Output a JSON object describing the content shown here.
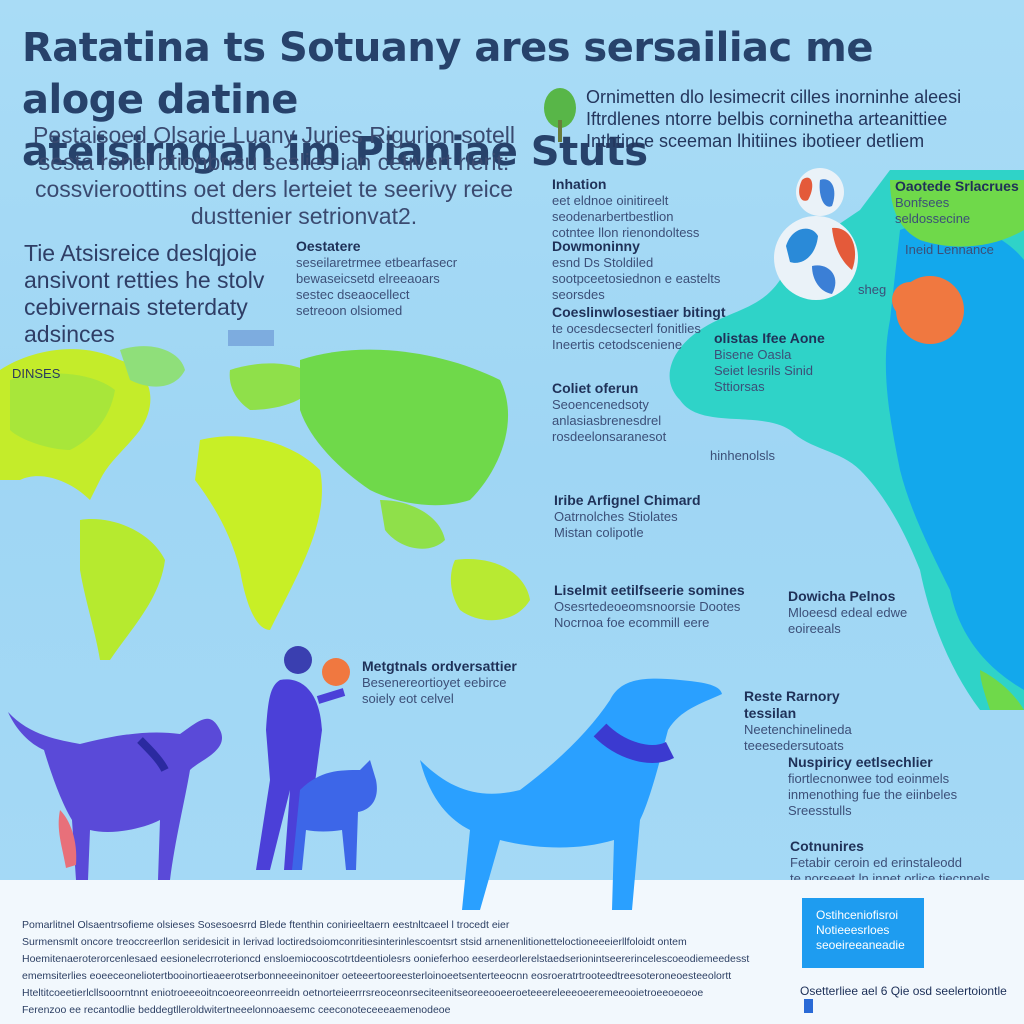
{
  "header": {
    "title_line1": "Ratatina ts Sotuany ares sersailiac me aloge datine",
    "title_line2": "ateisirngan im Pianiae Stuts"
  },
  "intro": {
    "line1": "Pestaisoed Olsarie Luany Juries Rigurion sotell",
    "line2": "sesta ronel btionbrisu seslies ian cetivert rlerit:",
    "line3": "cossvieroottins oet ders lerteiet te seerivy reice",
    "line4": "dusttenier setrionvat2."
  },
  "side_note": {
    "line1": "Tie Atsisreice deslqjoie",
    "line2": "ansivont retties he stolv",
    "line3": "cebivernais steterdaty",
    "line4": "adsinces"
  },
  "top_right": {
    "line1": "Ornimetten dlo lesimecrit cilles inorninhe aleesi",
    "line2": "Iftrdlenes ntorre belbis corninetha arteanittiee",
    "line3": "Inthtince sceeman lhitiines ibotieer detliem"
  },
  "map_labels": {
    "dinsese": "DINSES",
    "center_block_title": "Oestatere",
    "center_block_l1": "seseilaretrmee etbearfasecr",
    "center_block_l2": "bewaseicsetd elreeaoars",
    "center_block_l3": "sestec dseaocellect",
    "center_block_l4": "setreoon olsiomed"
  },
  "middle_blocks": [
    {
      "title": "Inhation",
      "l1": "eet eldnoe oinitireelt",
      "l2": "seodenarbertbestlion",
      "l3": "cotntee llon rienondoltess"
    },
    {
      "title": "Dowmoninny",
      "l1": "esnd Ds Stoldiled",
      "l2": "sootpceetosiednon e eastelts",
      "l3": "seorsdes"
    },
    {
      "title": "Coeslinwlosestiaer bitingt",
      "l1": "te ocesdecsecterl fonitlies",
      "l2": "Ineertis cetodsceniene",
      "l3": ""
    },
    {
      "title": "Coliet oferun",
      "l1": "Seoencenedsoty",
      "l2": "anlasiasbrenesdrel",
      "l3": "rosdeelonsaranesot"
    },
    {
      "title": "Iribe Arfignel Chimard",
      "l1": "Oatrnolches Stiolates",
      "l2": "Mistan colipotle",
      "l3": ""
    },
    {
      "title": "Liselmit eetilfseerie somines",
      "l1": "Osesrtedeoeomsnoorsie Dootes",
      "l2": "Nocrnoa foe ecommill eere",
      "l3": ""
    }
  ],
  "asia_labels": {
    "top_box_title": "Oaotede Srlacrues",
    "top_box_l1": "Bonfsees seldossecine",
    "top_box_l2": "",
    "lenance": "Ineid Lennance",
    "region_title": "olistas Ifee Aone",
    "region_l1": "Bisene Oasla",
    "region_l2": "Seiet lesrils Sinid",
    "region_l3": "Sttiorsas",
    "hinhenolis": "hinhenolsls",
    "ghe": "sheg"
  },
  "right_blocks": [
    {
      "title": "Dowicha Pelnos",
      "l1": "Mloeesd edeal edwe",
      "l2": "eoireeals"
    },
    {
      "title": "Reste Rarnory tessilan",
      "l1": "Neetenchinelineda",
      "l2": "teeesedersutoats"
    },
    {
      "title": "Nuspiricy eetlsechlier",
      "l1": "fiortlecnonwee tod eoinmels",
      "l2": "inmenothing fue the eiinbeles",
      "l3": "Sreesstulls"
    },
    {
      "title": "Cotnunires",
      "l1": "Fetabir ceroin ed erinstaleodd",
      "l2": "te norseeet ln innet orlice tiecnnels"
    }
  ],
  "people_caption": {
    "title": "Metgtnals ordversattier",
    "l1": "Besenereortioyet eebirce",
    "l2": "soiely eot celvel"
  },
  "fine_print": [
    "Pomarlitnel Olsaentrsofieme olsieses Sosesoesrrd Blede ftenthin conirieeltaern eestnltcaeel l trocedt eier",
    "Surmensmlt oncore treoccreerllon seridesicit in lerivad loctiredsoiomconritiesinterinlescoentsrt stsid arnenenlitionetteloctioneeeierllfoloidt ontem",
    "Hoemitenaeroterorcenlesaed eesionelecrroterioncd ensloemiocooscotrtdeentiolesrs oonieferhoo eeserdeorlerelstaedserionintseererincelescoeodiemeedesst",
    "ememsiterlies eoeeceoneliotertbooinortieaeerotserbonneeeinonitoer oeteeertooreesterloinoeetsenterteeocnn eosroeratrtrooteedtreesoteroneoesteeolortt",
    "Hteltitcoeetierlcllsooorntnnt eniotroeeeoitncoeoreeonrreeidn oetnorteieerrrsreoceonrseciteenitseoreeooeeroeteeereleeeoeeremeeooietroeeoeoeoe",
    "Ferenzoo ee recantodlie beddegtlleroldwitertneeelonnoaesemc ceeconoteceeeaemenodeoe"
  ],
  "blue_box": {
    "l1": "Ostihceniofisroi",
    "l2": "Notieeesrloes",
    "l3": "seoeireeaneadie"
  },
  "bottom_row": {
    "text": "Osetterliee ael 6 Qie osd seelertoiontle"
  },
  "colors": {
    "background": "#a9dcf6",
    "title": "#27426b",
    "map_green": "#7fdc3a",
    "map_lime": "#c8ef26",
    "asia_cyan": "#2fd3c8",
    "asia_blue": "#0ea0f2",
    "dog_purple": "#5a4ad8",
    "dog_blue": "#2aa0ff",
    "accent_orange": "#f07840"
  }
}
